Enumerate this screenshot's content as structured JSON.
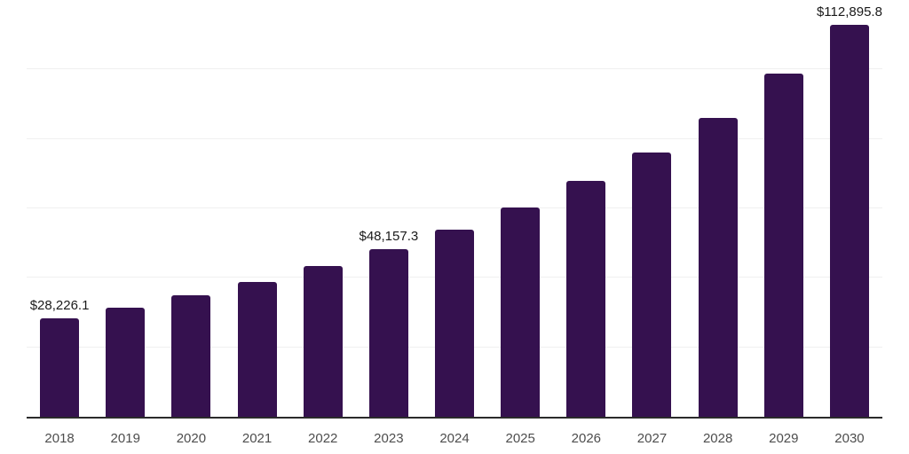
{
  "chart_data": {
    "type": "bar",
    "title": "",
    "xlabel": "",
    "ylabel": "",
    "categories": [
      "2018",
      "2019",
      "2020",
      "2021",
      "2022",
      "2023",
      "2024",
      "2025",
      "2026",
      "2027",
      "2028",
      "2029",
      "2030"
    ],
    "values": [
      28226.1,
      31300,
      34900,
      38900,
      43300,
      48157.3,
      53800,
      60300,
      67900,
      76200,
      86100,
      98800,
      112895.8
    ],
    "annotations": [
      {
        "category": "2018",
        "label": "$28,226.1"
      },
      {
        "category": "2023",
        "label": "$48,157.3"
      },
      {
        "category": "2030",
        "label": "$112,895.8"
      }
    ],
    "ylim": [
      0,
      120000
    ],
    "gridline_step": 20000,
    "grid": true,
    "legend": false,
    "colors": {
      "bar": "#35114f",
      "axis_line": "#2b2b2b",
      "gridline": "#f0f0f0",
      "value_label": "#1a1a1a",
      "tick_label": "#4d4d4d",
      "background": "#ffffff"
    }
  }
}
